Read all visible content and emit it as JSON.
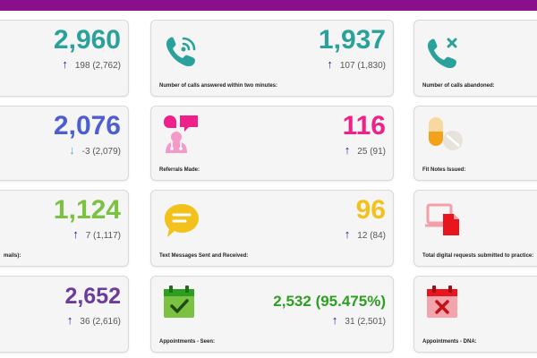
{
  "colors": {
    "header": "#8a0f8a",
    "teal": "#2aa19a",
    "blue": "#4d5fcf",
    "pink": "#f0208a",
    "lime": "#7cc242",
    "yellow": "#f2c11b",
    "purple": "#6b3c9a",
    "green": "#2e9e22",
    "up_arrow": "#1a1a9e",
    "down_arrow": "#3aaee0"
  },
  "cards": [
    {
      "value": "2,960",
      "change": "198",
      "prev": "(2,762)",
      "arrow": "↑",
      "label": ""
    },
    {
      "value": "1,937",
      "change": "107",
      "prev": "(1,830)",
      "arrow": "↑",
      "label": "Number of calls answered within two minutes:",
      "icon": "phone-wifi-icon"
    },
    {
      "value": "",
      "change": "",
      "prev": "",
      "arrow": "",
      "label": "Number of calls abandoned:",
      "icon": "phone-x-icon"
    },
    {
      "value": "2,076",
      "change": "-3",
      "prev": "(2,079)",
      "arrow": "↓",
      "label": ""
    },
    {
      "value": "116",
      "change": "25",
      "prev": "(91)",
      "arrow": "↑",
      "label": "Referrals Made:",
      "icon": "doctor-chat-icon"
    },
    {
      "value": "",
      "change": "",
      "prev": "",
      "arrow": "",
      "label": "Fit Notes Issued:",
      "icon": "pills-icon"
    },
    {
      "value": "1,124",
      "change": "7",
      "prev": "(1,117)",
      "arrow": "↑",
      "label": "mails):"
    },
    {
      "value": "96",
      "change": "12",
      "prev": "(84)",
      "arrow": "↑",
      "label": "Text Messages Sent and Received:",
      "icon": "message-bubble-icon"
    },
    {
      "value": "",
      "change": "",
      "prev": "",
      "arrow": "",
      "label": "Total digital requests submitted to practice:",
      "icon": "laptop-document-icon"
    },
    {
      "value": "2,652",
      "change": "36",
      "prev": "(2,616)",
      "arrow": "↑",
      "label": ""
    },
    {
      "value": "2,532",
      "pct": "(95.475%)",
      "change": "31",
      "prev": "(2,501)",
      "arrow": "↑",
      "label": "Appointments - Seen:",
      "icon": "calendar-check-icon"
    },
    {
      "value": "",
      "change": "",
      "prev": "",
      "arrow": "",
      "label": "Appointments - DNA:",
      "icon": "calendar-x-icon"
    }
  ]
}
